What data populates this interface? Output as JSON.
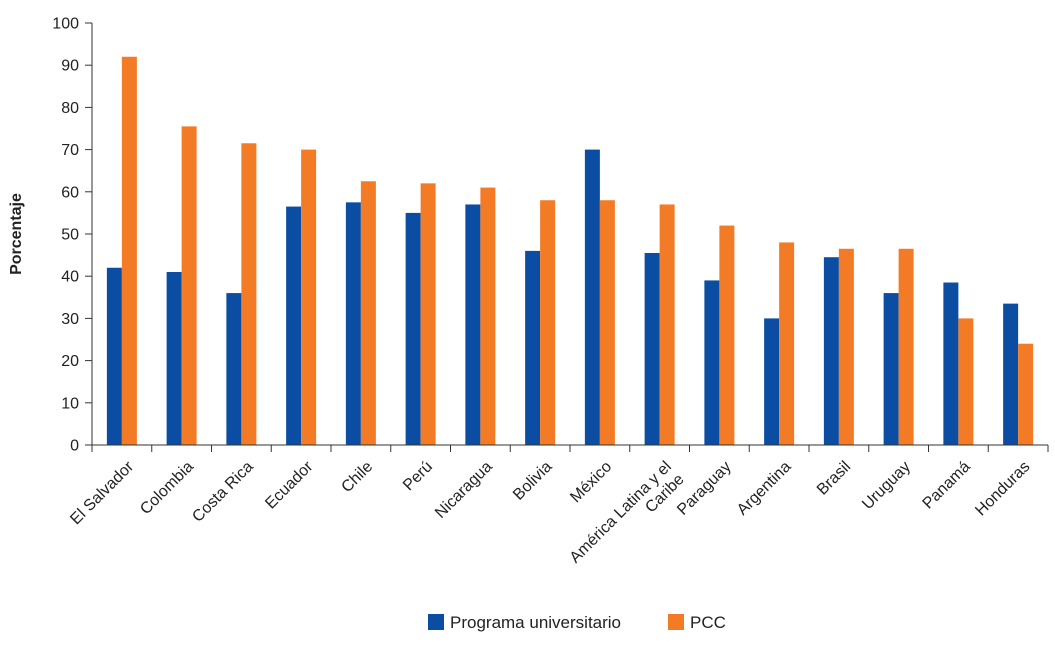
{
  "chart_data": {
    "type": "bar",
    "ylabel": "Porcentaje",
    "ylim": [
      0,
      100
    ],
    "yticks": [
      0,
      10,
      20,
      30,
      40,
      50,
      60,
      70,
      80,
      90,
      100
    ],
    "grid": false,
    "legend_position": "bottom-center",
    "categories": [
      [
        "El Salvador"
      ],
      [
        "Colombia"
      ],
      [
        "Costa Rica"
      ],
      [
        "Ecuador"
      ],
      [
        "Chile"
      ],
      [
        "Perú"
      ],
      [
        "Nicaragua"
      ],
      [
        "Bolivia"
      ],
      [
        "México"
      ],
      [
        "América Latina y el",
        "Caribe"
      ],
      [
        "Paraguay"
      ],
      [
        "Argentina"
      ],
      [
        "Brasil"
      ],
      [
        "Uruguay"
      ],
      [
        "Panamá"
      ],
      [
        "Honduras"
      ]
    ],
    "series": [
      {
        "name": "Programa universitario",
        "color": "#0a4da2",
        "values": [
          42,
          41,
          36,
          56.5,
          57.5,
          55,
          57,
          46,
          70,
          45.5,
          39,
          30,
          44.5,
          36,
          38.5,
          33.5
        ]
      },
      {
        "name": "PCC",
        "color": "#f47b26",
        "values": [
          92,
          75.5,
          71.5,
          70,
          62.5,
          62,
          61,
          58,
          58,
          57,
          52,
          48,
          46.5,
          46.5,
          30,
          24
        ]
      }
    ]
  }
}
